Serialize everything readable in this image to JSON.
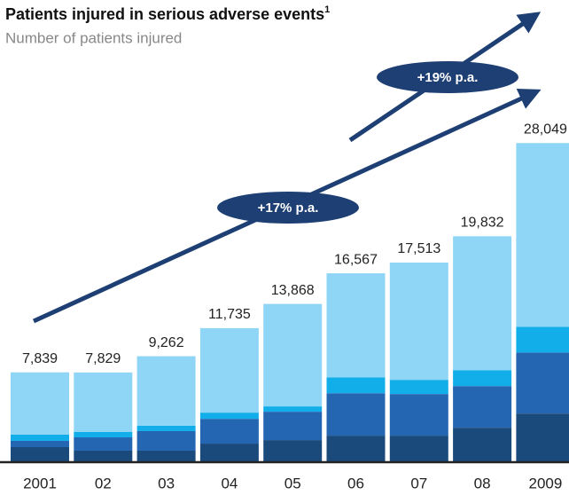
{
  "chart_data": {
    "type": "stacked-bar",
    "title": "Patients injured in serious adverse events",
    "title_footnote": "1",
    "subtitle": "Number of patients injured",
    "categories": [
      "2001",
      "02",
      "03",
      "04",
      "05",
      "06",
      "07",
      "08",
      "2009"
    ],
    "series": [
      {
        "color": "#1a4a7c",
        "values": [
          1250,
          940,
          940,
          1560,
          1870,
          2260,
          2260,
          2960,
          4210
        ]
      },
      {
        "color": "#2566b2",
        "values": [
          550,
          1170,
          1720,
          2180,
          2500,
          3740,
          3670,
          3670,
          5380
        ]
      },
      {
        "color": "#12aee9",
        "values": [
          550,
          470,
          470,
          550,
          470,
          1400,
          1250,
          1400,
          2260
        ]
      },
      {
        "color": "#8fd6f6",
        "values": [
          5489,
          5249,
          6132,
          7445,
          9028,
          9167,
          10333,
          11802,
          16199
        ]
      }
    ],
    "totals": [
      7839,
      7829,
      9262,
      11735,
      13868,
      16567,
      17513,
      19832,
      28049
    ],
    "total_labels": [
      "7,839",
      "7,829",
      "9,262",
      "11,735",
      "13,868",
      "16,567",
      "17,513",
      "19,832",
      "28,049"
    ],
    "ylim": [
      0,
      34400
    ],
    "annotations": [
      "+17% p.a.",
      "+19% p.a."
    ]
  }
}
